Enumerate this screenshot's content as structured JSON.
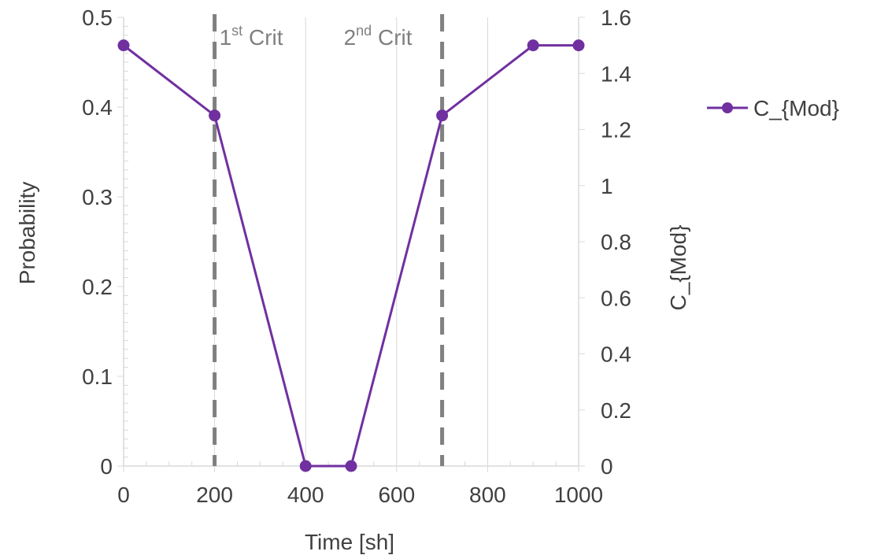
{
  "chart_data": {
    "type": "line",
    "title": "",
    "xlabel": "Time [sh]",
    "ylabel": "Probability",
    "y2label": "C_{Mod}",
    "xlim": [
      0,
      1000
    ],
    "ylim": [
      0,
      0.5
    ],
    "y2lim": [
      0,
      1.6
    ],
    "x_ticks": [
      "0",
      "200",
      "400",
      "600",
      "800",
      "1000"
    ],
    "y_ticks": [
      "0",
      "0.1",
      "0.2",
      "0.3",
      "0.4",
      "0.5"
    ],
    "y2_ticks": [
      "0",
      "0.2",
      "0.4",
      "0.6",
      "0.8",
      "1",
      "1.2",
      "1.4",
      "1.6"
    ],
    "grid": true,
    "legend_position": "right",
    "series": [
      {
        "name": "C_{Mod}",
        "axis": "right",
        "color": "#7030A0",
        "x": [
          0,
          200,
          400,
          500,
          700,
          900,
          1000
        ],
        "values": [
          1.5,
          1.25,
          0,
          0,
          1.25,
          1.5,
          1.5
        ]
      }
    ],
    "vlines": [
      {
        "x": 200,
        "label_base": "1",
        "label_sup": "st",
        "label_text": " Crit",
        "color": "#808080"
      },
      {
        "x": 700,
        "label_base": "2",
        "label_sup": "nd",
        "label_text": " Crit",
        "color": "#808080"
      }
    ]
  }
}
